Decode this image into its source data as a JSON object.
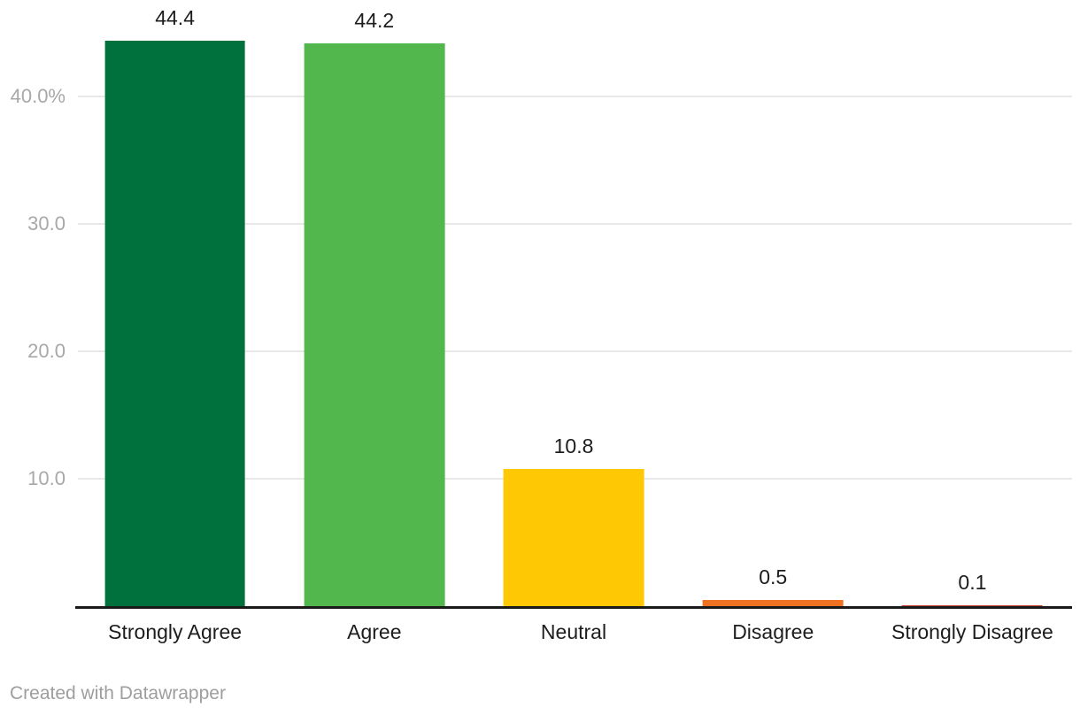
{
  "chart_data": {
    "type": "bar",
    "categories": [
      "Strongly Agree",
      "Agree",
      "Neutral",
      "Disagree",
      "Strongly Disagree"
    ],
    "values": [
      44.4,
      44.2,
      10.8,
      0.5,
      0.1
    ],
    "value_labels": [
      "44.4",
      "44.2",
      "10.8",
      "0.5",
      "0.1"
    ],
    "bar_colors": [
      "#00713c",
      "#52b84e",
      "#ffc805",
      "#ee7222",
      "#c7432c"
    ],
    "title": "",
    "xlabel": "",
    "ylabel": "",
    "ylim": [
      0,
      47.6
    ],
    "yticks": [
      {
        "value": 10,
        "label": "10.0"
      },
      {
        "value": 20,
        "label": "20.0"
      },
      {
        "value": 30,
        "label": "30.0"
      },
      {
        "value": 40,
        "label": "40.0%"
      }
    ],
    "grid": "horizontal",
    "legend": "none"
  },
  "footer": {
    "credit": "Created with Datawrapper"
  },
  "colors": {
    "background": "#ffffff",
    "axis_line": "#1a1a1a",
    "gridline": "#e8e8e8",
    "tick_label": "#a8a8a8",
    "value_label": "#1d1d1d",
    "category_label": "#1d1d1d",
    "footer_text": "#9e9e9e"
  }
}
